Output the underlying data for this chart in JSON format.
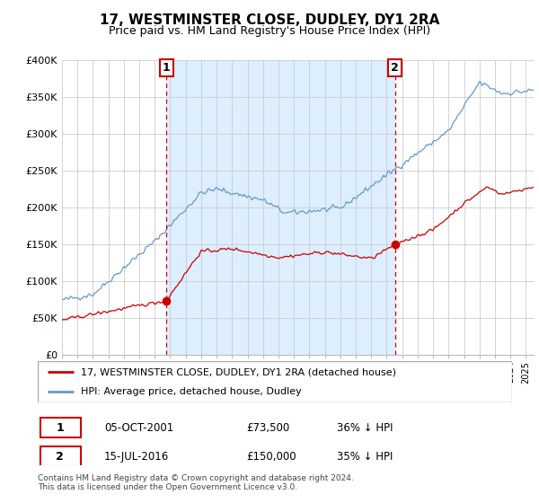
{
  "title": "17, WESTMINSTER CLOSE, DUDLEY, DY1 2RA",
  "subtitle": "Price paid vs. HM Land Registry's House Price Index (HPI)",
  "legend_line1": "17, WESTMINSTER CLOSE, DUDLEY, DY1 2RA (detached house)",
  "legend_line2": "HPI: Average price, detached house, Dudley",
  "sale1_label": "1",
  "sale1_date": "05-OCT-2001",
  "sale1_price": "£73,500",
  "sale1_hpi": "36% ↓ HPI",
  "sale2_label": "2",
  "sale2_date": "15-JUL-2016",
  "sale2_price": "£150,000",
  "sale2_hpi": "35% ↓ HPI",
  "footer": "Contains HM Land Registry data © Crown copyright and database right 2024.\nThis data is licensed under the Open Government Licence v3.0.",
  "sale1_year": 2001.75,
  "sale1_value": 73500,
  "sale2_year": 2016.54,
  "sale2_value": 150000,
  "red_color": "#cc0000",
  "blue_color": "#6699cc",
  "shade_color": "#ddeeff",
  "background_color": "#ffffff",
  "grid_color": "#cccccc",
  "ylim": [
    0,
    400000
  ],
  "xlim_start": 1995.0,
  "xlim_end": 2025.5
}
